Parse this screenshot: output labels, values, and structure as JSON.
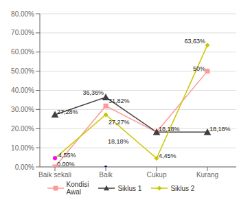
{
  "chart_data": {
    "type": "line",
    "categories": [
      "Baik sekali",
      "Baik",
      "Cukup",
      "Kurang"
    ],
    "series": [
      {
        "name": "Kondisi\nAwal",
        "color": "#ff9999",
        "marker": "square",
        "values": [
          0.0,
          31.82,
          18.18,
          50.0
        ]
      },
      {
        "name": "Siklus 1",
        "color": "#404040",
        "marker": "triangle",
        "values": [
          27.28,
          36.36,
          18.18,
          18.18
        ]
      },
      {
        "name": "Siklus 2",
        "color": "#c8c800",
        "marker": "diamond",
        "values": [
          4.55,
          27.27,
          4.45,
          63.63
        ]
      }
    ],
    "extra_points": [
      {
        "category": "Baik sekali",
        "y": 4.55,
        "color": "#ff00ff",
        "marker": "circle"
      },
      {
        "category": "Baik",
        "y": 0.0,
        "color": "#00008b",
        "marker": "circle"
      }
    ],
    "annotations": [
      {
        "category": "Baik sekali",
        "y": 0.0,
        "text": "0.00%"
      },
      {
        "category": "Baik sekali",
        "y": 27.28,
        "text": "27,28%"
      },
      {
        "category": "Baik sekali",
        "y": 4.55,
        "text": "4,55%"
      },
      {
        "category": "Baik",
        "y": 36.36,
        "text": "36,36%"
      },
      {
        "category": "Baik",
        "y": 31.82,
        "text": "31,82%"
      },
      {
        "category": "Baik",
        "y": 27.27,
        "text": "27,27%"
      },
      {
        "category": "Baik",
        "y": 18.18,
        "text": "18,18%"
      },
      {
        "category": "Cukup",
        "y": 18.18,
        "text": "18,18%"
      },
      {
        "category": "Cukup",
        "y": 4.45,
        "text": "4,45%"
      },
      {
        "category": "Kurang",
        "y": 50.0,
        "text": "50%"
      },
      {
        "category": "Kurang",
        "y": 18.18,
        "text": "18,18%"
      },
      {
        "category": "Kurang",
        "y": 63.63,
        "text": "63,63%"
      }
    ],
    "ylim": [
      0,
      80
    ],
    "yticks": [
      {
        "value": 0,
        "label": "0.00%"
      },
      {
        "value": 10,
        "label": "10.00%"
      },
      {
        "value": 20,
        "label": "20.00%"
      },
      {
        "value": 30,
        "label": "30.00%"
      },
      {
        "value": 40,
        "label": "40.00%"
      },
      {
        "value": 50,
        "label": "50.00%"
      },
      {
        "value": 60,
        "label": "60.00%"
      },
      {
        "value": 70,
        "label": "70.00%"
      },
      {
        "value": 80,
        "label": "80.00%"
      }
    ],
    "grid": true,
    "legend": "bottom"
  }
}
